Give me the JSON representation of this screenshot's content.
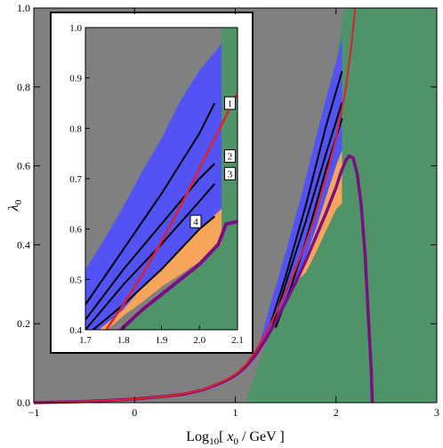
{
  "chart_data": [
    {
      "type": "area",
      "xlabel": "Log10[ x0 / GeV ]",
      "xlabel_parts": {
        "pre": "Log",
        "sub": "10",
        "mid": "[ ",
        "var": "x",
        "varsub": "0",
        "post": " / GeV ]"
      },
      "ylabel": "λ0",
      "ylabel_parts": {
        "var": "λ",
        "sub": "0"
      },
      "xlim": [
        -1,
        3
      ],
      "ylim": [
        0,
        1
      ],
      "x_ticks": [
        "−1",
        "0",
        "1",
        "2",
        "3"
      ],
      "y_ticks": [
        "0.0",
        "0.2",
        "0.4",
        "0.6",
        "0.8",
        "1.0"
      ],
      "colors": {
        "gray": "#808080",
        "green": "#4e9468",
        "blue": "#5252f5",
        "orange": "#f8a55c",
        "red": "#e2202a",
        "purple": "#7a0f82",
        "black": "#000000"
      },
      "gray_boundary": [
        [
          1.1,
          0.0
        ],
        [
          1.3,
          0.145
        ],
        [
          1.5,
          0.295
        ],
        [
          1.7,
          0.46
        ],
        [
          1.9,
          0.69
        ],
        [
          2.08,
          1.0
        ]
      ],
      "blue_upper": [
        [
          1.22,
          0.13
        ],
        [
          1.35,
          0.25
        ],
        [
          1.5,
          0.38
        ],
        [
          1.65,
          0.52
        ],
        [
          1.8,
          0.67
        ],
        [
          1.92,
          0.79
        ],
        [
          2.02,
          0.88
        ],
        [
          2.06,
          0.93
        ]
      ],
      "blue_lower": [
        [
          1.22,
          0.13
        ],
        [
          1.3,
          0.155
        ],
        [
          1.4,
          0.2
        ],
        [
          1.5,
          0.25
        ],
        [
          1.6,
          0.305
        ],
        [
          1.7,
          0.37
        ],
        [
          1.8,
          0.44
        ],
        [
          1.9,
          0.52
        ],
        [
          2.0,
          0.6
        ],
        [
          2.06,
          0.64
        ]
      ],
      "orange_upper": [
        [
          1.6,
          0.305
        ],
        [
          1.7,
          0.37
        ],
        [
          1.8,
          0.44
        ],
        [
          1.9,
          0.52
        ],
        [
          2.0,
          0.6
        ],
        [
          2.06,
          0.64
        ],
        [
          2.06,
          0.61
        ]
      ],
      "orange_lower": [
        [
          1.6,
          0.305
        ],
        [
          1.7,
          0.33
        ],
        [
          1.8,
          0.38
        ],
        [
          1.9,
          0.435
        ],
        [
          2.0,
          0.49
        ],
        [
          2.06,
          0.505
        ],
        [
          2.06,
          0.61
        ]
      ],
      "red_curve": [
        [
          -1,
          0.0
        ],
        [
          -0.5,
          0.003
        ],
        [
          0,
          0.009
        ],
        [
          0.3,
          0.016
        ],
        [
          0.5,
          0.023
        ],
        [
          0.7,
          0.035
        ],
        [
          0.9,
          0.057
        ],
        [
          1.0,
          0.072
        ],
        [
          1.1,
          0.095
        ],
        [
          1.2,
          0.13
        ],
        [
          1.3,
          0.175
        ],
        [
          1.4,
          0.225
        ],
        [
          1.5,
          0.28
        ],
        [
          1.6,
          0.34
        ],
        [
          1.7,
          0.405
        ],
        [
          1.8,
          0.48
        ],
        [
          1.9,
          0.57
        ],
        [
          2.0,
          0.67
        ],
        [
          2.1,
          0.8
        ],
        [
          2.15,
          0.9
        ],
        [
          2.19,
          1.0
        ]
      ],
      "purple_curve": [
        [
          -1,
          0.0
        ],
        [
          -0.5,
          0.003
        ],
        [
          0,
          0.009
        ],
        [
          0.3,
          0.016
        ],
        [
          0.5,
          0.022
        ],
        [
          0.7,
          0.034
        ],
        [
          0.9,
          0.055
        ],
        [
          1.0,
          0.069
        ],
        [
          1.1,
          0.09
        ],
        [
          1.2,
          0.12
        ],
        [
          1.3,
          0.16
        ],
        [
          1.4,
          0.205
        ],
        [
          1.5,
          0.255
        ],
        [
          1.6,
          0.305
        ],
        [
          1.7,
          0.36
        ],
        [
          1.8,
          0.42
        ],
        [
          1.9,
          0.48
        ],
        [
          2.0,
          0.545
        ],
        [
          2.05,
          0.585
        ],
        [
          2.1,
          0.615
        ],
        [
          2.13,
          0.625
        ],
        [
          2.17,
          0.62
        ],
        [
          2.21,
          0.58
        ],
        [
          2.25,
          0.5
        ],
        [
          2.29,
          0.37
        ],
        [
          2.32,
          0.22
        ],
        [
          2.35,
          0.08
        ],
        [
          2.36,
          0.0
        ]
      ],
      "black_lines": [
        [
          [
            1.35,
            0.2
          ],
          [
            1.5,
            0.32
          ],
          [
            1.7,
            0.5
          ],
          [
            1.9,
            0.7
          ],
          [
            2.06,
            0.84
          ]
        ],
        [
          [
            1.37,
            0.195
          ],
          [
            1.5,
            0.3
          ],
          [
            1.7,
            0.46
          ],
          [
            1.9,
            0.63
          ],
          [
            2.06,
            0.76
          ]
        ],
        [
          [
            1.4,
            0.19
          ],
          [
            1.55,
            0.29
          ],
          [
            1.7,
            0.41
          ],
          [
            1.9,
            0.59
          ],
          [
            2.06,
            0.72
          ]
        ]
      ]
    },
    {
      "type": "area",
      "xlim": [
        1.7,
        2.1
      ],
      "ylim": [
        0.4,
        1.0
      ],
      "x_ticks": [
        "1.7",
        "1.8",
        "1.9",
        "2.0",
        "2.1"
      ],
      "y_ticks": [
        "0.4",
        "0.5",
        "0.6",
        "0.7",
        "0.8",
        "0.9",
        "1.0"
      ],
      "blue_upper": [
        [
          1.7,
          0.52
        ],
        [
          1.75,
          0.58
        ],
        [
          1.8,
          0.645
        ],
        [
          1.85,
          0.715
        ],
        [
          1.9,
          0.78
        ],
        [
          1.95,
          0.855
        ],
        [
          2.0,
          0.915
        ],
        [
          2.05,
          0.96
        ],
        [
          2.058,
          0.97
        ]
      ],
      "blue_lower": [
        [
          1.7,
          0.4
        ],
        [
          1.736,
          0.4
        ],
        [
          1.8,
          0.44
        ],
        [
          1.85,
          0.485
        ],
        [
          1.9,
          0.52
        ],
        [
          1.95,
          0.56
        ],
        [
          2.0,
          0.6
        ],
        [
          2.058,
          0.64
        ]
      ],
      "orange_upper": [
        [
          1.736,
          0.4
        ],
        [
          1.8,
          0.44
        ],
        [
          1.85,
          0.485
        ],
        [
          1.9,
          0.52
        ],
        [
          1.95,
          0.56
        ],
        [
          2.0,
          0.6
        ],
        [
          2.058,
          0.64
        ],
        [
          2.058,
          0.58
        ]
      ],
      "orange_lower": [
        [
          1.758,
          0.4
        ],
        [
          1.8,
          0.428
        ],
        [
          1.85,
          0.455
        ],
        [
          1.9,
          0.485
        ],
        [
          1.95,
          0.51
        ],
        [
          2.0,
          0.535
        ],
        [
          2.058,
          0.57
        ],
        [
          2.058,
          0.58
        ]
      ],
      "green_boundary": [
        [
          2.058,
          0.58
        ],
        [
          2.058,
          1.0
        ]
      ],
      "red_curve": [
        [
          1.7,
          0.35
        ],
        [
          1.75,
          0.395
        ],
        [
          1.8,
          0.45
        ],
        [
          1.85,
          0.51
        ],
        [
          1.9,
          0.575
        ],
        [
          1.95,
          0.645
        ],
        [
          2.0,
          0.72
        ],
        [
          2.05,
          0.795
        ],
        [
          2.1,
          0.87
        ]
      ],
      "purple_curve": [
        [
          1.7,
          0.335
        ],
        [
          1.75,
          0.37
        ],
        [
          1.8,
          0.405
        ],
        [
          1.85,
          0.44
        ],
        [
          1.9,
          0.47
        ],
        [
          1.95,
          0.5
        ],
        [
          2.0,
          0.53
        ],
        [
          2.05,
          0.57
        ],
        [
          2.07,
          0.61
        ],
        [
          2.1,
          0.615
        ]
      ],
      "black_lines": [
        [
          [
            1.7,
            0.45
          ],
          [
            1.8,
            0.56
          ],
          [
            1.9,
            0.67
          ],
          [
            2.0,
            0.79
          ],
          [
            2.04,
            0.85
          ]
        ],
        [
          [
            1.7,
            0.42
          ],
          [
            1.8,
            0.52
          ],
          [
            1.9,
            0.61
          ],
          [
            2.0,
            0.7
          ],
          [
            2.04,
            0.73
          ]
        ],
        [
          [
            1.7,
            0.4
          ],
          [
            1.8,
            0.49
          ],
          [
            1.9,
            0.57
          ],
          [
            2.0,
            0.655
          ],
          [
            2.04,
            0.69
          ]
        ],
        [
          [
            1.72,
            0.4
          ],
          [
            1.8,
            0.45
          ],
          [
            1.9,
            0.52
          ],
          [
            2.0,
            0.6
          ],
          [
            2.04,
            0.625
          ]
        ]
      ],
      "box_labels": [
        {
          "text": "1",
          "x": 2.08,
          "y": 0.85
        },
        {
          "text": "2",
          "x": 2.08,
          "y": 0.745
        },
        {
          "text": "3",
          "x": 2.08,
          "y": 0.71
        },
        {
          "text": "4",
          "x": 1.99,
          "y": 0.615
        }
      ]
    }
  ]
}
